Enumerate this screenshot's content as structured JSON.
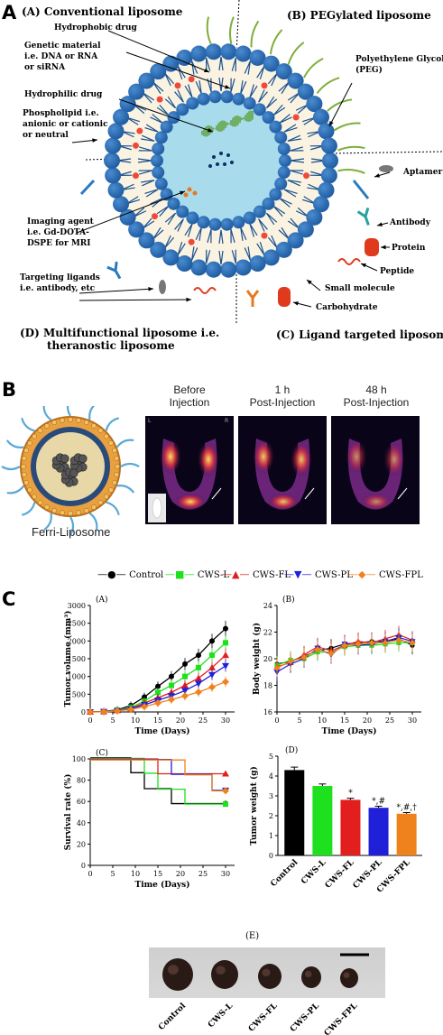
{
  "panel_letters": {
    "a": "A",
    "b": "B",
    "c": "C"
  },
  "panel_a": {
    "corner_titles": {
      "conventional": "(A) Conventional liposome",
      "pegylated": "(B) PEGylated liposome",
      "multifunctional_1": "(D) Multifunctional liposome i.e.",
      "multifunctional_2": "theranostic liposome",
      "ligand": "(C) Ligand targeted liposome"
    },
    "left_labels": {
      "hydrophobic": "Hydrophobic drug",
      "genetic_1": "Genetic material",
      "genetic_2": "i.e. DNA or RNA",
      "genetic_3": "or siRNA",
      "hydrophilic": "Hydrophilic drug",
      "phospho_1": "Phospholipid i.e.",
      "phospho_2": "anionic or cationic",
      "phospho_3": "or neutral",
      "imaging_1": "Imaging agent",
      "imaging_2": "i.e. Gd-DOTA-",
      "imaging_3": "DSPE for MRI",
      "targeting_1": "Targeting ligands",
      "targeting_2": "i.e. antibody, etc"
    },
    "right_labels": {
      "peg_1": "Polyethylene Glycol",
      "peg_2": "(PEG)",
      "aptamer": "Aptamer",
      "antibody": "Antibody",
      "protein": "Protein",
      "peptide": "Peptide",
      "small_molecule": "Small molecule",
      "carbohydrate": "Carbohydrate"
    },
    "colors": {
      "head": "#1e5aa0",
      "head_light": "#4a8cd0",
      "tail": "#1a4f8c",
      "shell": "#faf3e2",
      "core": "#a8dcec",
      "drug": "#ee4a3a",
      "dna": "#5ca03a",
      "peg": "#7fae3a"
    }
  },
  "panel_b": {
    "headers": {
      "before_1": "Before",
      "before_2": "Injection",
      "h1_1": "1 h",
      "h1_2": "Post-Injection",
      "h48_1": "48 h",
      "h48_2": "Post-Injection"
    },
    "caption": "Ferri-Liposome",
    "image_corner_l": "L",
    "image_corner_r": "R"
  },
  "panel_c": {
    "legend": [
      "Control",
      "CWS-L",
      "CWS-FL",
      "CWS-PL",
      "CWS-FPL"
    ],
    "colors": [
      "#000000",
      "#1ee01e",
      "#e21e1e",
      "#2020d8",
      "#f0821e"
    ],
    "sub_labels": {
      "a": "(A)",
      "b": "(B)",
      "c": "(C)",
      "d": "(D)",
      "e": "(E)"
    }
  },
  "chart_data": [
    {
      "type": "line",
      "panel": "(A)",
      "xlabel": "Time (Days)",
      "ylabel": "Tumor volume (mm³)",
      "xlim": [
        0,
        32
      ],
      "ylim": [
        0,
        3000
      ],
      "xticks": [
        "0",
        "5",
        "10",
        "15",
        "20",
        "25",
        "30"
      ],
      "yticks": [
        "0",
        "500",
        "1000",
        "1500",
        "2000",
        "2500",
        "3000"
      ],
      "x": [
        0,
        3,
        6,
        9,
        12,
        15,
        18,
        21,
        24,
        27,
        30
      ],
      "series": [
        {
          "name": "Control",
          "values": [
            0,
            15,
            60,
            180,
            420,
            720,
            1000,
            1350,
            1600,
            2000,
            2350
          ]
        },
        {
          "name": "CWS-L",
          "values": [
            0,
            10,
            50,
            130,
            300,
            550,
            750,
            1000,
            1250,
            1600,
            1950
          ]
        },
        {
          "name": "CWS-FL",
          "values": [
            0,
            10,
            40,
            100,
            250,
            400,
            550,
            750,
            950,
            1250,
            1600
          ]
        },
        {
          "name": "CWS-PL",
          "values": [
            0,
            8,
            35,
            90,
            200,
            330,
            450,
            600,
            800,
            1050,
            1300
          ]
        },
        {
          "name": "CWS-FPL",
          "values": [
            0,
            5,
            30,
            70,
            150,
            250,
            350,
            450,
            560,
            700,
            850
          ]
        }
      ]
    },
    {
      "type": "line",
      "panel": "(B)",
      "xlabel": "Time (Days)",
      "ylabel": "Body weight (g)",
      "xlim": [
        0,
        32
      ],
      "ylim": [
        16,
        24
      ],
      "xticks": [
        "0",
        "5",
        "10",
        "15",
        "20",
        "25",
        "30"
      ],
      "yticks": [
        "16",
        "18",
        "20",
        "22",
        "24"
      ],
      "x": [
        0,
        3,
        6,
        9,
        12,
        15,
        18,
        21,
        24,
        27,
        30
      ],
      "series": [
        {
          "name": "Control",
          "values": [
            19.6,
            19.8,
            20.2,
            20.6,
            20.8,
            21.1,
            21.2,
            21.3,
            21.3,
            21.5,
            21.0
          ]
        },
        {
          "name": "CWS-L",
          "values": [
            19.5,
            19.9,
            20.0,
            20.5,
            20.5,
            20.9,
            21.0,
            21.0,
            21.1,
            21.2,
            21.2
          ]
        },
        {
          "name": "CWS-FL",
          "values": [
            19.4,
            19.7,
            20.3,
            20.9,
            20.6,
            21.0,
            21.3,
            21.2,
            21.5,
            21.8,
            21.4
          ]
        },
        {
          "name": "CWS-PL",
          "values": [
            19.0,
            19.6,
            20.0,
            20.8,
            20.3,
            21.1,
            21.0,
            21.1,
            21.3,
            21.6,
            21.3
          ]
        },
        {
          "name": "CWS-FPL",
          "values": [
            19.3,
            19.8,
            20.1,
            20.7,
            20.4,
            21.0,
            21.1,
            21.2,
            21.2,
            21.4,
            21.2
          ]
        }
      ]
    },
    {
      "type": "line",
      "panel": "(C)",
      "xlabel": "Time (Days)",
      "ylabel": "Survival rate (%)",
      "xlim": [
        0,
        32
      ],
      "ylim": [
        0,
        100
      ],
      "xticks": [
        "0",
        "5",
        "10",
        "15",
        "20",
        "25",
        "30"
      ],
      "yticks": [
        "0",
        "20",
        "40",
        "60",
        "80",
        "100"
      ],
      "series": [
        {
          "name": "Control",
          "x": [
            0,
            9,
            9,
            12,
            12,
            18,
            18,
            30
          ],
          "values": [
            100,
            100,
            86,
            86,
            71,
            71,
            57,
            57
          ]
        },
        {
          "name": "CWS-L",
          "x": [
            0,
            12,
            12,
            15,
            15,
            21,
            21,
            30
          ],
          "values": [
            100,
            100,
            86,
            86,
            71,
            71,
            57,
            57
          ]
        },
        {
          "name": "CWS-FL",
          "x": [
            0,
            15,
            15,
            30
          ],
          "values": [
            100,
            100,
            86,
            86
          ]
        },
        {
          "name": "CWS-PL",
          "x": [
            0,
            18,
            18,
            27,
            27,
            30
          ],
          "values": [
            100,
            100,
            86,
            86,
            71,
            71
          ]
        },
        {
          "name": "CWS-FPL",
          "x": [
            0,
            21,
            21,
            27,
            27,
            30
          ],
          "values": [
            100,
            100,
            86,
            86,
            71,
            71
          ]
        }
      ]
    },
    {
      "type": "bar",
      "panel": "(D)",
      "ylabel": "Tumor weight (g)",
      "ylim": [
        0,
        5
      ],
      "yticks": [
        "0",
        "1",
        "2",
        "3",
        "4",
        "5"
      ],
      "categories": [
        "Control",
        "CWS-L",
        "CWS-FL",
        "CWS-PL",
        "CWS-FPL"
      ],
      "values": [
        4.3,
        3.5,
        2.8,
        2.4,
        2.1
      ],
      "errors": [
        0.15,
        0.1,
        0.08,
        0.08,
        0.06
      ],
      "annotations": [
        "",
        "",
        "*",
        "*,#",
        "*,#,†"
      ]
    }
  ]
}
